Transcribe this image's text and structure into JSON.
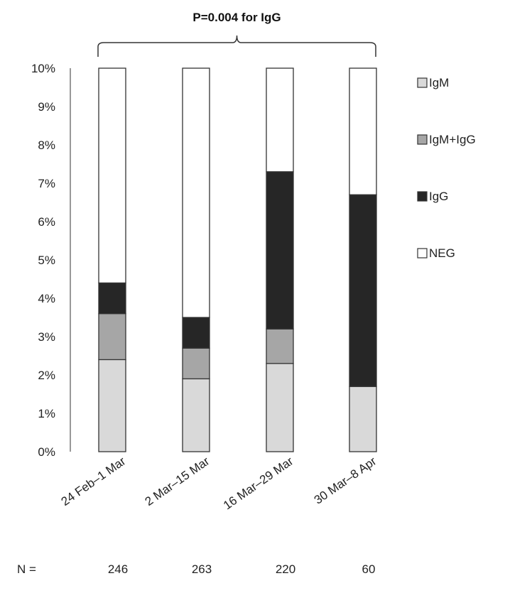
{
  "chart_data": {
    "type": "bar",
    "stacked": true,
    "categories": [
      "24 Feb–1 Mar",
      "2 Mar–15 Mar",
      "16 Mar–29 Mar",
      "30 Mar–8 Apr"
    ],
    "series": [
      {
        "name": "IgM",
        "values": [
          2.4,
          1.9,
          2.3,
          1.7
        ],
        "color": "#d9d9d9"
      },
      {
        "name": "IgM+IgG",
        "values": [
          1.2,
          0.8,
          0.9,
          0.0
        ],
        "color": "#a6a6a6"
      },
      {
        "name": "IgG",
        "values": [
          0.8,
          0.8,
          4.1,
          5.0
        ],
        "color": "#262626"
      },
      {
        "name": "NEG",
        "values": [
          5.6,
          6.5,
          2.7,
          3.3
        ],
        "color": "#ffffff"
      }
    ],
    "ylim": [
      0,
      10
    ],
    "yticks": [
      "0%",
      "1%",
      "2%",
      "3%",
      "4%",
      "5%",
      "6%",
      "7%",
      "8%",
      "9%",
      "10%"
    ],
    "legend_position": "right",
    "legend_order": [
      "IgM",
      "IgM+IgG",
      "IgG",
      "NEG"
    ],
    "annotation": "P=0.004 for IgG",
    "n_label": "N =",
    "n_values": [
      "246",
      "263",
      "220",
      "60"
    ]
  }
}
